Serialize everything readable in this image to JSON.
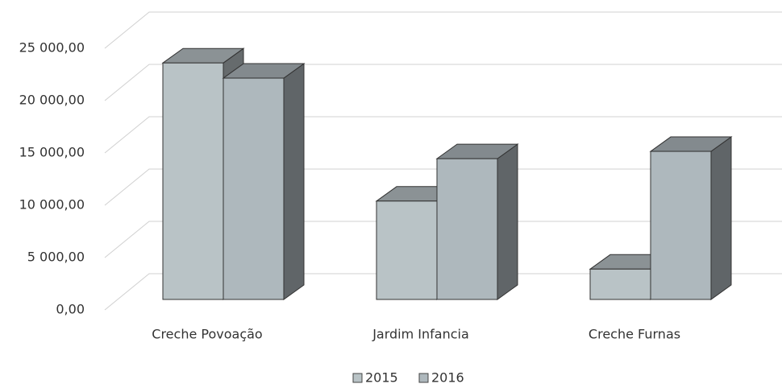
{
  "chart_data": {
    "type": "bar3d",
    "categories": [
      "Creche Povoação",
      "Jardim Infancia",
      "Creche Furnas"
    ],
    "series": [
      {
        "name": "2015",
        "color": "#b9c3c6",
        "values": [
          22600,
          9400,
          2900
        ]
      },
      {
        "name": "2016",
        "color": "#aeb8bd",
        "values": [
          21150,
          13450,
          14150
        ]
      }
    ],
    "ylim": [
      0,
      25000
    ],
    "yticks": [
      {
        "value": 0,
        "label": "0,00"
      },
      {
        "value": 5000,
        "label": "5 000,00"
      },
      {
        "value": 10000,
        "label": "10 000,00"
      },
      {
        "value": 15000,
        "label": "15 000,00"
      },
      {
        "value": 20000,
        "label": "20 000,00"
      },
      {
        "value": 25000,
        "label": "25 000,00"
      }
    ],
    "grid": true,
    "legend": "bottom"
  }
}
